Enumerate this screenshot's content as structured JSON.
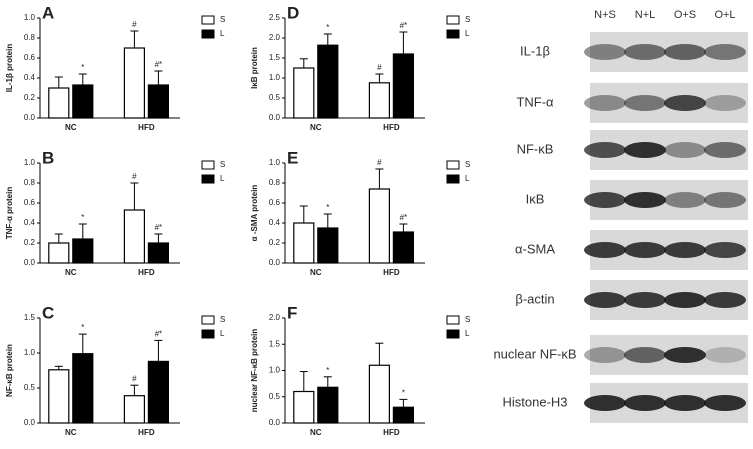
{
  "chart_data": [
    {
      "type": "bar",
      "panel": "A",
      "ylabel": "IL-1β protein",
      "categories": [
        "NC",
        "HFD"
      ],
      "series": [
        {
          "name": "S",
          "color": "#ffffff",
          "values": [
            0.3,
            0.7
          ],
          "errors": [
            0.11,
            0.17
          ],
          "markers": [
            null,
            "#"
          ]
        },
        {
          "name": "L",
          "color": "#000000",
          "values": [
            0.33,
            0.33
          ],
          "errors": [
            0.11,
            0.14
          ],
          "markers": [
            "*",
            "#*"
          ]
        }
      ],
      "ylim": [
        0,
        1.0
      ],
      "yticks": [
        {
          "value": 0,
          "label": "0.0"
        },
        0.2,
        0.4,
        0.6,
        0.8,
        {
          "value": 1,
          "label": "1.0"
        }
      ]
    },
    {
      "type": "bar",
      "panel": "B",
      "ylabel": "TNF-α protein",
      "categories": [
        "NC",
        "HFD"
      ],
      "series": [
        {
          "name": "S",
          "color": "#ffffff",
          "values": [
            0.2,
            0.53
          ],
          "errors": [
            0.09,
            0.27
          ],
          "markers": [
            null,
            "#"
          ]
        },
        {
          "name": "L",
          "color": "#000000",
          "values": [
            0.24,
            0.2
          ],
          "errors": [
            0.15,
            0.09
          ],
          "markers": [
            "*",
            "#*"
          ]
        }
      ],
      "ylim": [
        0,
        1.0
      ],
      "yticks": [
        {
          "value": 0,
          "label": "0.0"
        },
        0.2,
        0.4,
        0.6,
        0.8,
        {
          "value": 1,
          "label": "1.0"
        }
      ]
    },
    {
      "type": "bar",
      "panel": "C",
      "ylabel": "NF-κB protein",
      "categories": [
        "NC",
        "HFD"
      ],
      "series": [
        {
          "name": "S",
          "color": "#ffffff",
          "values": [
            0.76,
            0.39
          ],
          "errors": [
            0.05,
            0.15
          ],
          "markers": [
            null,
            "#"
          ]
        },
        {
          "name": "L",
          "color": "#000000",
          "values": [
            0.99,
            0.88
          ],
          "errors": [
            0.28,
            0.3
          ],
          "markers": [
            "*",
            "#*"
          ]
        }
      ],
      "ylim": [
        0,
        1.5
      ],
      "yticks": [
        {
          "value": 0,
          "label": "0.0"
        },
        0.5,
        {
          "value": 1,
          "label": "1.0"
        },
        1.5
      ]
    },
    {
      "type": "bar",
      "panel": "D",
      "ylabel": "IκB protein",
      "categories": [
        "NC",
        "HFD"
      ],
      "series": [
        {
          "name": "S",
          "color": "#ffffff",
          "values": [
            1.25,
            0.88
          ],
          "errors": [
            0.23,
            0.22
          ],
          "markers": [
            null,
            "#"
          ]
        },
        {
          "name": "L",
          "color": "#000000",
          "values": [
            1.82,
            1.6
          ],
          "errors": [
            0.28,
            0.55
          ],
          "markers": [
            "*",
            "#*"
          ]
        }
      ],
      "ylim": [
        0,
        2.5
      ],
      "yticks": [
        {
          "value": 0,
          "label": "0.0"
        },
        0.5,
        {
          "value": 1,
          "label": "1.0"
        },
        1.5,
        {
          "value": 2,
          "label": "2.0"
        },
        2.5
      ]
    },
    {
      "type": "bar",
      "panel": "E",
      "ylabel": "α -SMA protein",
      "categories": [
        "NC",
        "HFD"
      ],
      "series": [
        {
          "name": "S",
          "color": "#ffffff",
          "values": [
            0.4,
            0.74
          ],
          "errors": [
            0.17,
            0.2
          ],
          "markers": [
            null,
            "#"
          ]
        },
        {
          "name": "L",
          "color": "#000000",
          "values": [
            0.35,
            0.31
          ],
          "errors": [
            0.14,
            0.08
          ],
          "markers": [
            "*",
            "#*"
          ]
        }
      ],
      "ylim": [
        0,
        1.0
      ],
      "yticks": [
        {
          "value": 0,
          "label": "0.0"
        },
        0.2,
        0.4,
        0.6,
        0.8,
        {
          "value": 1,
          "label": "1.0"
        }
      ]
    },
    {
      "type": "bar",
      "panel": "F",
      "ylabel": "nuclear NF-κB protein",
      "categories": [
        "NC",
        "HFD"
      ],
      "series": [
        {
          "name": "S",
          "color": "#ffffff",
          "values": [
            0.6,
            1.1
          ],
          "errors": [
            0.38,
            0.42
          ],
          "markers": [
            null,
            null
          ]
        },
        {
          "name": "L",
          "color": "#000000",
          "values": [
            0.68,
            0.3
          ],
          "errors": [
            0.2,
            0.15
          ],
          "markers": [
            "*",
            "*"
          ]
        }
      ],
      "ylim": [
        0,
        2.0
      ],
      "yticks": [
        {
          "value": 0,
          "label": "0.0"
        },
        0.5,
        {
          "value": 1,
          "label": "1.0"
        },
        1.5,
        {
          "value": 2,
          "label": "2.0"
        }
      ]
    }
  ],
  "blot": {
    "lanes": [
      "N+S",
      "N+L",
      "O+S",
      "O+L"
    ],
    "rows": [
      "IL-1β",
      "TNF-α",
      "NF-κB",
      "IκB",
      "α-SMA",
      "β-actin",
      "nuclear NF-κB",
      "Histone-H3"
    ]
  }
}
